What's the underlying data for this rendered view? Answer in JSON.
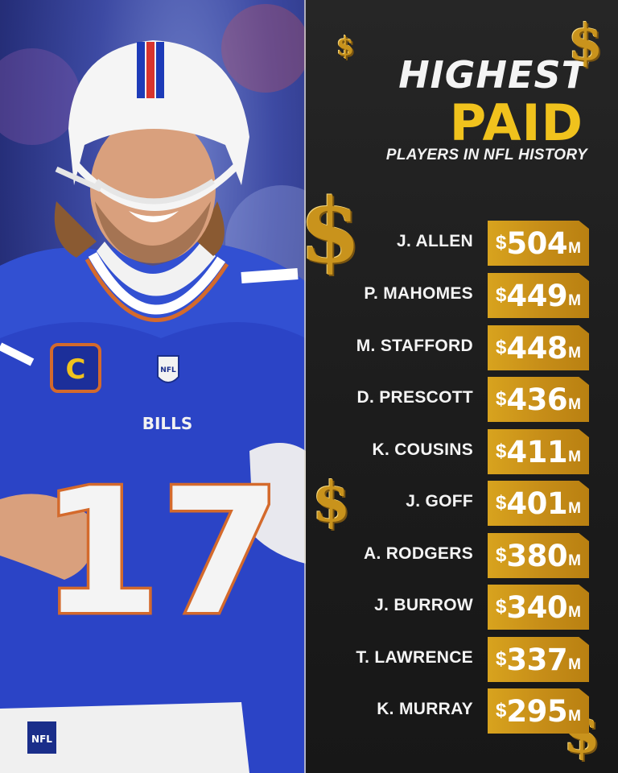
{
  "header": {
    "title_line1": "HIGHEST",
    "title_line2": "PAID",
    "subtitle": "PLAYERS IN NFL HISTORY"
  },
  "photo": {
    "jersey_number": "17",
    "team_wordmark": "BILLS",
    "captain_patch": "C",
    "league_logo": "NFL"
  },
  "colors": {
    "panel_background": "#1f1f1f",
    "accent_gold": "#f0c21d",
    "tag_gold": "#c68d18",
    "jersey_blue": "#2b44c6"
  },
  "players": [
    {
      "name": "J. ALLEN",
      "currency": "$",
      "amount": "504",
      "unit": "M"
    },
    {
      "name": "P. MAHOMES",
      "currency": "$",
      "amount": "449",
      "unit": "M"
    },
    {
      "name": "M. STAFFORD",
      "currency": "$",
      "amount": "448",
      "unit": "M"
    },
    {
      "name": "D. PRESCOTT",
      "currency": "$",
      "amount": "436",
      "unit": "M"
    },
    {
      "name": "K. COUSINS",
      "currency": "$",
      "amount": "411",
      "unit": "M"
    },
    {
      "name": "J. GOFF",
      "currency": "$",
      "amount": "401",
      "unit": "M"
    },
    {
      "name": "A. RODGERS",
      "currency": "$",
      "amount": "380",
      "unit": "M"
    },
    {
      "name": "J. BURROW",
      "currency": "$",
      "amount": "340",
      "unit": "M"
    },
    {
      "name": "T. LAWRENCE",
      "currency": "$",
      "amount": "337",
      "unit": "M"
    },
    {
      "name": "K. MURRAY",
      "currency": "$",
      "amount": "295",
      "unit": "M"
    }
  ],
  "decor": {
    "dollar_symbol": "$",
    "icon": "gold-dollar-sign-icon"
  }
}
